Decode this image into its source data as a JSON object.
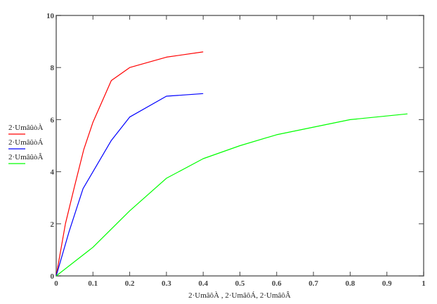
{
  "chart_data": {
    "type": "line",
    "title": "",
    "xlabel": "2·UmâôÀ , 2·UmâôÁ, 2·UmâôÂ",
    "ylabel": "",
    "xlim": [
      0,
      1
    ],
    "ylim": [
      0,
      10
    ],
    "x_ticks": [
      "0",
      "0.1",
      "0.2",
      "0.3",
      "0.4",
      "0.5",
      "0.6",
      "0.7",
      "0.8",
      "0.9",
      "1"
    ],
    "x_tick_values": [
      0,
      0.1,
      0.2,
      0.3,
      0.4,
      0.5,
      0.6,
      0.7,
      0.8,
      0.9,
      1
    ],
    "y_ticks": [
      "0",
      "2",
      "4",
      "6",
      "8",
      "10"
    ],
    "y_tick_values": [
      0,
      2,
      4,
      6,
      8,
      10
    ],
    "grid": false,
    "legend_position": "left",
    "series": [
      {
        "name": "2·UmâûòÀ",
        "color": "#ff0000",
        "x": [
          0,
          0.025,
          0.05,
          0.075,
          0.1,
          0.15,
          0.2,
          0.3,
          0.4
        ],
        "y": [
          0,
          2.0,
          3.45,
          4.85,
          5.9,
          7.5,
          8.0,
          8.4,
          8.6
        ]
      },
      {
        "name": "2·UmâûòÁ",
        "color": "#0000ff",
        "x": [
          0,
          0.035,
          0.073,
          0.15,
          0.2,
          0.3,
          0.4
        ],
        "y": [
          0,
          1.7,
          3.35,
          5.2,
          6.1,
          6.9,
          7.0
        ]
      },
      {
        "name": "2·UmâûòÂ",
        "color": "#00ff00",
        "x": [
          0,
          0.1,
          0.2,
          0.3,
          0.4,
          0.5,
          0.6,
          0.8,
          0.956
        ],
        "y": [
          0,
          1.1,
          2.5,
          3.75,
          4.5,
          5.0,
          5.42,
          6.0,
          6.22
        ]
      }
    ]
  }
}
